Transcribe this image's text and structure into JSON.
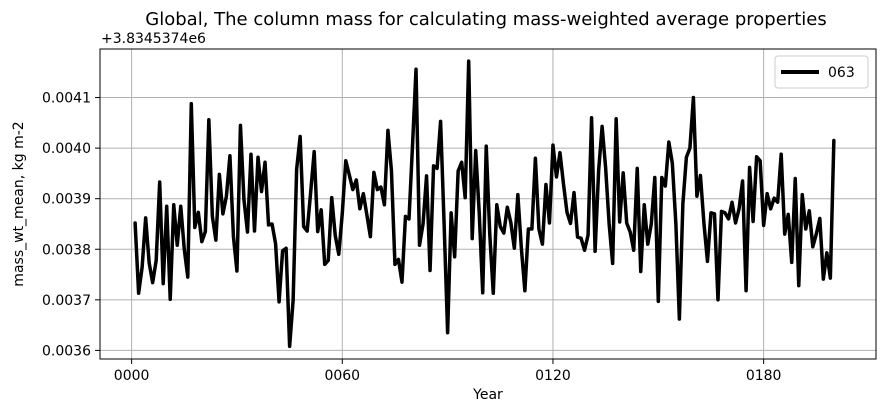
{
  "chart_data": {
    "type": "line",
    "title": "Global, The column mass for calculating mass-weighted average properties",
    "offset_label": "+3.8345374e6",
    "xlabel": "Year",
    "ylabel": "mass_wt_mean, kg m-2",
    "xlim": [
      -9,
      212
    ],
    "ylim": [
      0.003583,
      0.004196
    ],
    "x_ticks": [
      0,
      60,
      120,
      180
    ],
    "x_tick_labels": [
      "0000",
      "0060",
      "0120",
      "0180"
    ],
    "y_ticks": [
      0.0036,
      0.0037,
      0.0038,
      0.0039,
      0.004,
      0.0041
    ],
    "y_tick_labels": [
      "0.0036",
      "0.0037",
      "0.0038",
      "0.0039",
      "0.0040",
      "0.0041"
    ],
    "grid": true,
    "legend_position": "top-right",
    "line_color": "#000000",
    "series": [
      {
        "name": "063",
        "x_start": 1,
        "x_step": 1,
        "values": [
          0.003852,
          0.003713,
          0.003765,
          0.003862,
          0.003773,
          0.003734,
          0.003778,
          0.003933,
          0.003732,
          0.003885,
          0.003701,
          0.003888,
          0.003808,
          0.003885,
          0.0038,
          0.003745,
          0.004088,
          0.003843,
          0.003873,
          0.003815,
          0.003835,
          0.004056,
          0.003865,
          0.003818,
          0.003948,
          0.00387,
          0.003905,
          0.003985,
          0.003825,
          0.003757,
          0.004045,
          0.003898,
          0.003834,
          0.003988,
          0.003836,
          0.003982,
          0.003914,
          0.003972,
          0.003848,
          0.00385,
          0.003811,
          0.003696,
          0.003797,
          0.003802,
          0.003608,
          0.003699,
          0.003958,
          0.004023,
          0.003845,
          0.003836,
          0.003913,
          0.003993,
          0.003835,
          0.003878,
          0.00377,
          0.003778,
          0.003902,
          0.003827,
          0.00379,
          0.003871,
          0.003975,
          0.003947,
          0.003918,
          0.003937,
          0.00388,
          0.00391,
          0.003868,
          0.003825,
          0.003952,
          0.003918,
          0.003923,
          0.003888,
          0.004035,
          0.003955,
          0.00377,
          0.00378,
          0.003735,
          0.003865,
          0.00386,
          0.004005,
          0.004156,
          0.003808,
          0.00385,
          0.003945,
          0.003758,
          0.003965,
          0.00396,
          0.004053,
          0.00385,
          0.003635,
          0.003872,
          0.003785,
          0.003955,
          0.003972,
          0.003902,
          0.004172,
          0.003821,
          0.003995,
          0.003872,
          0.003714,
          0.004004,
          0.00383,
          0.003713,
          0.003888,
          0.003845,
          0.003832,
          0.003883,
          0.003853,
          0.003802,
          0.003908,
          0.003802,
          0.003718,
          0.00384,
          0.00384,
          0.00398,
          0.00384,
          0.00381,
          0.003928,
          0.003852,
          0.004006,
          0.003943,
          0.003991,
          0.003929,
          0.003873,
          0.003851,
          0.003912,
          0.003824,
          0.003822,
          0.003798,
          0.003828,
          0.00406,
          0.003796,
          0.003955,
          0.004043,
          0.003961,
          0.00385,
          0.003772,
          0.004058,
          0.003854,
          0.003951,
          0.003852,
          0.003834,
          0.003798,
          0.00396,
          0.003756,
          0.003888,
          0.00381,
          0.00385,
          0.003942,
          0.003697,
          0.003942,
          0.003925,
          0.004012,
          0.00397,
          0.003851,
          0.003662,
          0.00389,
          0.003982,
          0.004,
          0.0041,
          0.003905,
          0.003946,
          0.003851,
          0.003776,
          0.003872,
          0.00387,
          0.0037,
          0.003875,
          0.003872,
          0.00386,
          0.003893,
          0.003852,
          0.00388,
          0.003935,
          0.003718,
          0.003962,
          0.003855,
          0.003983,
          0.003975,
          0.003847,
          0.00391,
          0.00388,
          0.003901,
          0.003893,
          0.003988,
          0.00383,
          0.003869,
          0.003774,
          0.00394,
          0.003728,
          0.003908,
          0.00384,
          0.003876,
          0.003805,
          0.00383,
          0.003861,
          0.003741,
          0.003793,
          0.003743,
          0.004015
        ]
      }
    ]
  }
}
